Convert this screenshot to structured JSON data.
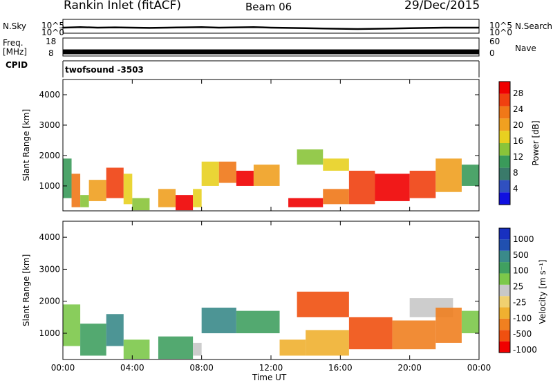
{
  "header": {
    "station": "Rankin Inlet (fitACF)",
    "beam": "Beam 06",
    "date": "29/Dec/2015"
  },
  "top_panels": {
    "nsky_label": "N.Sky",
    "nsearch_label": "N.Search",
    "nsky_ticks": [
      "10^5",
      "10^0"
    ],
    "nsearch_ticks": [
      "10^5",
      "10^0"
    ],
    "freq_label": "Freq.",
    "freq_unit": "[MHz]",
    "freq_ticks": [
      "18",
      "8"
    ],
    "nave_label": "Nave",
    "nave_ticks": [
      "60",
      "0"
    ],
    "cpid_label": "CPID",
    "cpid_value": "twofsound -3503"
  },
  "colors": {
    "power_scale": [
      "#1010e0",
      "#3050c0",
      "#3a7a6a",
      "#3a9a5a",
      "#8ac43a",
      "#e8d020",
      "#f0a020",
      "#f07818",
      "#f04010",
      "#f00000"
    ],
    "velocity_scale": [
      "#f00000",
      "#f05010",
      "#f08020",
      "#f0b030",
      "#f0d070",
      "#c8c8c8",
      "#7cc84a",
      "#40a060",
      "#3a8a8a",
      "#2050b0",
      "#1830c0"
    ]
  },
  "chart_data": [
    {
      "type": "heatmap",
      "name": "power-panel",
      "xlabel": "",
      "ylabel": "Slant Range [km]",
      "xlim": [
        "00:00",
        "24:00"
      ],
      "ylim": [
        180,
        4500
      ],
      "yticks": [
        1000,
        2000,
        3000,
        4000
      ],
      "colorbar": {
        "label": "Power [dB]",
        "ticks": [
          4,
          8,
          12,
          16,
          20,
          24,
          28
        ],
        "range": [
          0,
          31
        ]
      },
      "cells": [
        {
          "t0": 0.0,
          "t1": 0.5,
          "r0": 600,
          "r1": 1900,
          "v": 10
        },
        {
          "t0": 0.5,
          "t1": 1.0,
          "r0": 300,
          "r1": 1400,
          "v": 22
        },
        {
          "t0": 1.0,
          "t1": 1.5,
          "r0": 300,
          "r1": 700,
          "v": 14
        },
        {
          "t0": 1.5,
          "t1": 2.5,
          "r0": 500,
          "r1": 1200,
          "v": 20
        },
        {
          "t0": 2.5,
          "t1": 3.5,
          "r0": 600,
          "r1": 1600,
          "v": 26
        },
        {
          "t0": 3.5,
          "t1": 4.0,
          "r0": 400,
          "r1": 1400,
          "v": 18
        },
        {
          "t0": 4.0,
          "t1": 5.0,
          "r0": 200,
          "r1": 600,
          "v": 14
        },
        {
          "t0": 5.5,
          "t1": 6.5,
          "r0": 300,
          "r1": 900,
          "v": 20
        },
        {
          "t0": 6.5,
          "t1": 7.5,
          "r0": 200,
          "r1": 700,
          "v": 28
        },
        {
          "t0": 7.5,
          "t1": 8.0,
          "r0": 300,
          "r1": 900,
          "v": 18
        },
        {
          "t0": 8.0,
          "t1": 9.0,
          "r0": 1000,
          "r1": 1800,
          "v": 16
        },
        {
          "t0": 9.0,
          "t1": 10.0,
          "r0": 1100,
          "r1": 1800,
          "v": 22
        },
        {
          "t0": 10.0,
          "t1": 11.0,
          "r0": 1000,
          "r1": 1500,
          "v": 28
        },
        {
          "t0": 11.0,
          "t1": 12.5,
          "r0": 1000,
          "r1": 1700,
          "v": 20
        },
        {
          "t0": 13.0,
          "t1": 15.0,
          "r0": 300,
          "r1": 600,
          "v": 28
        },
        {
          "t0": 13.5,
          "t1": 15.0,
          "r0": 1700,
          "r1": 2200,
          "v": 14
        },
        {
          "t0": 15.0,
          "t1": 16.5,
          "r0": 400,
          "r1": 900,
          "v": 22
        },
        {
          "t0": 15.0,
          "t1": 16.5,
          "r0": 1500,
          "r1": 1900,
          "v": 16
        },
        {
          "t0": 16.5,
          "t1": 18.0,
          "r0": 400,
          "r1": 1500,
          "v": 26
        },
        {
          "t0": 18.0,
          "t1": 20.0,
          "r0": 500,
          "r1": 1400,
          "v": 30
        },
        {
          "t0": 20.0,
          "t1": 21.5,
          "r0": 600,
          "r1": 1500,
          "v": 26
        },
        {
          "t0": 21.5,
          "t1": 23.0,
          "r0": 800,
          "r1": 1900,
          "v": 20
        },
        {
          "t0": 23.0,
          "t1": 24.0,
          "r0": 1000,
          "r1": 1700,
          "v": 12
        }
      ]
    },
    {
      "type": "heatmap",
      "name": "velocity-panel",
      "xlabel": "Time UT",
      "ylabel": "Slant Range [km]",
      "xlim": [
        "00:00",
        "24:00"
      ],
      "ylim": [
        180,
        4500
      ],
      "xticks": [
        "00:00",
        "04:00",
        "08:00",
        "12:00",
        "16:00",
        "20:00",
        "00:00"
      ],
      "yticks": [
        1000,
        2000,
        3000,
        4000
      ],
      "colorbar": {
        "label": "Velocity [m s⁻¹]",
        "ticks": [
          "1000",
          "500",
          "100",
          "25",
          "-25",
          "-100",
          "-500",
          "-1000"
        ]
      },
      "cells": [
        {
          "t0": 0.0,
          "t1": 1.0,
          "r0": 600,
          "r1": 1900,
          "v": 6
        },
        {
          "t0": 1.0,
          "t1": 2.5,
          "r0": 300,
          "r1": 1300,
          "v": 7
        },
        {
          "t0": 2.5,
          "t1": 3.5,
          "r0": 600,
          "r1": 1600,
          "v": 8
        },
        {
          "t0": 3.5,
          "t1": 5.0,
          "r0": 200,
          "r1": 800,
          "v": 6
        },
        {
          "t0": 5.5,
          "t1": 7.5,
          "r0": 200,
          "r1": 900,
          "v": 7
        },
        {
          "t0": 7.5,
          "t1": 8.0,
          "r0": 300,
          "r1": 700,
          "v": 5
        },
        {
          "t0": 8.0,
          "t1": 10.0,
          "r0": 1000,
          "r1": 1800,
          "v": 8
        },
        {
          "t0": 10.0,
          "t1": 12.5,
          "r0": 1000,
          "r1": 1700,
          "v": 7
        },
        {
          "t0": 12.5,
          "t1": 14.0,
          "r0": 300,
          "r1": 800,
          "v": 3
        },
        {
          "t0": 13.5,
          "t1": 16.5,
          "r0": 1500,
          "r1": 2300,
          "v": 1
        },
        {
          "t0": 14.0,
          "t1": 16.5,
          "r0": 300,
          "r1": 1100,
          "v": 3
        },
        {
          "t0": 16.5,
          "t1": 19.0,
          "r0": 500,
          "r1": 1500,
          "v": 1
        },
        {
          "t0": 19.0,
          "t1": 21.5,
          "r0": 500,
          "r1": 1400,
          "v": 2
        },
        {
          "t0": 20.0,
          "t1": 22.5,
          "r0": 1500,
          "r1": 2100,
          "v": 5
        },
        {
          "t0": 21.5,
          "t1": 23.0,
          "r0": 700,
          "r1": 1800,
          "v": 2
        },
        {
          "t0": 23.0,
          "t1": 24.0,
          "r0": 1000,
          "r1": 1700,
          "v": 6
        }
      ]
    },
    {
      "type": "line",
      "name": "nsky-strip",
      "x": [
        0,
        1,
        2,
        3,
        4,
        5,
        6,
        7,
        8,
        9,
        10,
        11,
        12,
        13,
        14,
        15,
        16,
        17,
        18,
        19,
        20,
        21,
        22,
        23,
        24
      ],
      "y": [
        2,
        2.2,
        2,
        2.1,
        2,
        1.9,
        2,
        2.1,
        2.2,
        2,
        2.1,
        2.2,
        2,
        1.9,
        1.8,
        1.7,
        1.6,
        1.5,
        1.6,
        1.7,
        1.8,
        1.9,
        2,
        2,
        2
      ]
    },
    {
      "type": "line",
      "name": "freq-strip",
      "x": [
        0,
        24
      ],
      "y": [
        10.5,
        10.5
      ]
    }
  ]
}
